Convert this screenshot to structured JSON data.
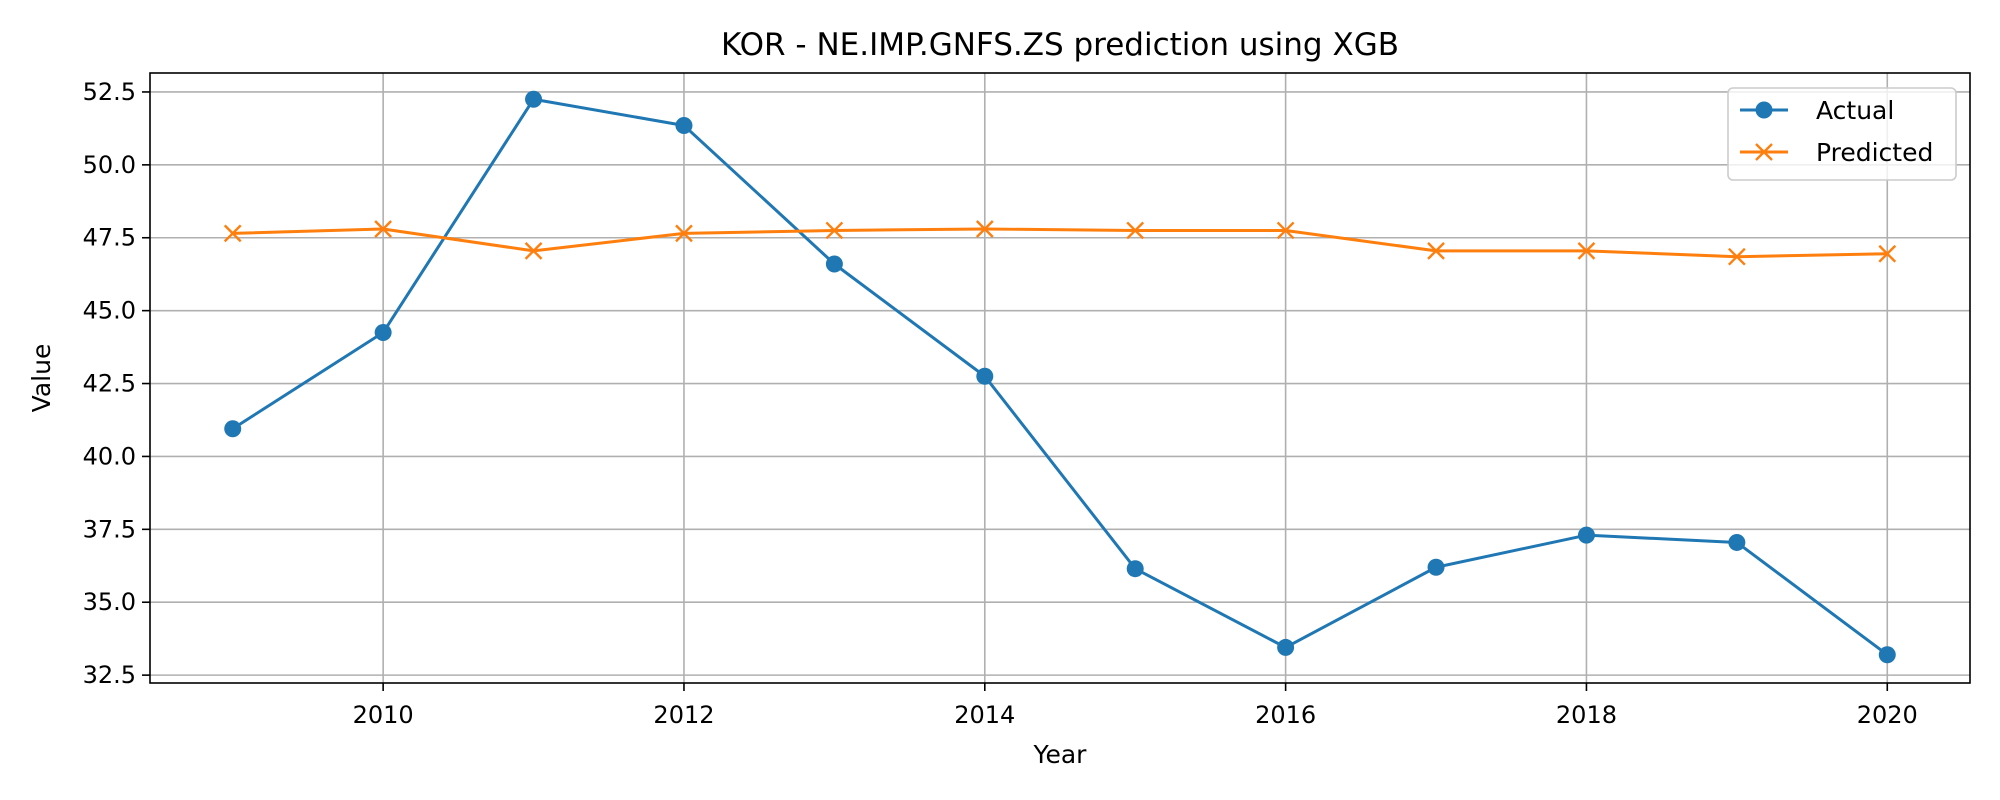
{
  "chart_data": {
    "type": "line",
    "title": "KOR - NE.IMP.GNFS.ZS prediction using XGB",
    "xlabel": "Year",
    "ylabel": "Value",
    "x": [
      2009,
      2010,
      2011,
      2012,
      2013,
      2014,
      2015,
      2016,
      2017,
      2018,
      2019,
      2020
    ],
    "xlim": [
      2008.45,
      2020.55
    ],
    "ylim": [
      32.23,
      53.15
    ],
    "x_ticks": [
      2010,
      2012,
      2014,
      2016,
      2018,
      2020
    ],
    "y_ticks": [
      32.5,
      35.0,
      37.5,
      40.0,
      42.5,
      45.0,
      47.5,
      50.0,
      52.5
    ],
    "grid": true,
    "legend_position": "top-right",
    "series": [
      {
        "name": "Actual",
        "marker": "circle",
        "color": "#1f77b4",
        "values": [
          40.95,
          44.25,
          52.25,
          51.35,
          46.6,
          42.75,
          36.15,
          33.45,
          36.2,
          37.3,
          37.05,
          33.2
        ]
      },
      {
        "name": "Predicted",
        "marker": "x",
        "color": "#ff7f0e",
        "values": [
          47.65,
          47.8,
          47.05,
          47.65,
          47.75,
          47.8,
          47.75,
          47.75,
          47.05,
          47.05,
          46.85,
          46.95
        ]
      }
    ]
  }
}
